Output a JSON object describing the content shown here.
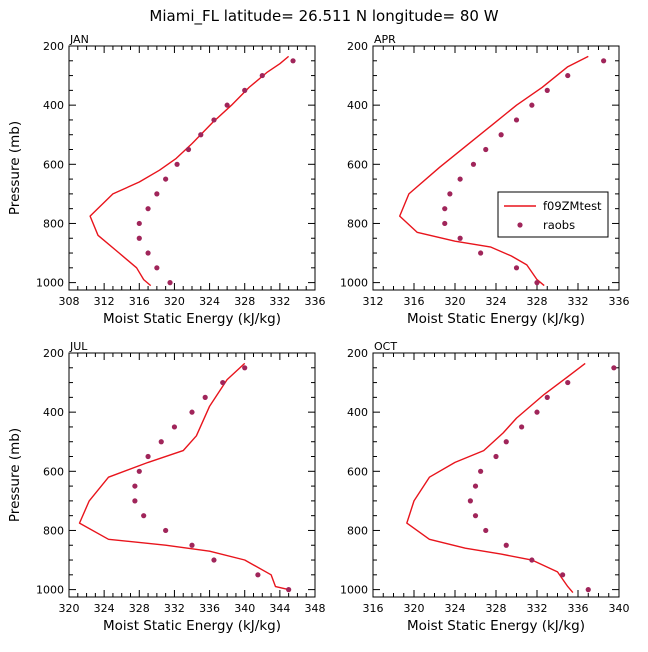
{
  "title": "Miami_FL  latitude= 26.511 N longitude= 80 W",
  "colors": {
    "model": "#e8141c",
    "obs": "#a0255a",
    "axis": "#000000"
  },
  "chart_data": [
    {
      "type": "scatter",
      "panel": "JAN",
      "xlabel": "Moist Static Energy (kJ/kg)",
      "ylabel": "Pressure (mb)",
      "xlim": [
        308,
        336
      ],
      "ylim": [
        200,
        1025
      ],
      "xticks": [
        308,
        312,
        316,
        320,
        324,
        328,
        332,
        336
      ],
      "yticks": [
        200,
        400,
        600,
        800,
        1000
      ],
      "legend": null,
      "series": [
        {
          "name": "f09ZMtest",
          "kind": "line",
          "points": [
            [
              333.0,
              235
            ],
            [
              332.0,
              260
            ],
            [
              330.5,
              290
            ],
            [
              328.5,
              340
            ],
            [
              326.5,
              400
            ],
            [
              324.3,
              460
            ],
            [
              322.0,
              530
            ],
            [
              320.2,
              580
            ],
            [
              318.3,
              620
            ],
            [
              316.0,
              660
            ],
            [
              313.0,
              700
            ],
            [
              310.4,
              775
            ],
            [
              311.3,
              840
            ],
            [
              313.7,
              900
            ],
            [
              315.7,
              950
            ],
            [
              316.5,
              990
            ],
            [
              317.3,
              1010
            ]
          ]
        },
        {
          "name": "raobs",
          "kind": "points",
          "points": [
            [
              333.5,
              250
            ],
            [
              330.0,
              300
            ],
            [
              328.0,
              350
            ],
            [
              326.0,
              400
            ],
            [
              324.5,
              450
            ],
            [
              323.0,
              500
            ],
            [
              321.6,
              550
            ],
            [
              320.3,
              600
            ],
            [
              319.0,
              650
            ],
            [
              318.0,
              700
            ],
            [
              317.0,
              750
            ],
            [
              316.0,
              800
            ],
            [
              316.0,
              850
            ],
            [
              317.0,
              900
            ],
            [
              318.0,
              950
            ],
            [
              319.5,
              1000
            ]
          ]
        }
      ]
    },
    {
      "type": "scatter",
      "panel": "APR",
      "xlabel": "Moist Static Energy (kJ/kg)",
      "ylabel": "",
      "xlim": [
        312,
        336
      ],
      "ylim": [
        200,
        1025
      ],
      "xticks": [
        312,
        316,
        320,
        324,
        328,
        332,
        336
      ],
      "yticks": [
        200,
        400,
        600,
        800,
        1000
      ],
      "legend": {
        "position": "right",
        "entries": [
          "f09ZMtest",
          "raobs"
        ]
      },
      "series": [
        {
          "name": "f09ZMtest",
          "kind": "line",
          "points": [
            [
              333.0,
              235
            ],
            [
              331.0,
              270
            ],
            [
              328.5,
              340
            ],
            [
              326.0,
              400
            ],
            [
              323.5,
              470
            ],
            [
              321.0,
              540
            ],
            [
              318.5,
              610
            ],
            [
              315.5,
              700
            ],
            [
              314.6,
              775
            ],
            [
              316.3,
              830
            ],
            [
              320.0,
              860
            ],
            [
              323.5,
              880
            ],
            [
              325.5,
              910
            ],
            [
              327.0,
              940
            ],
            [
              328.0,
              990
            ],
            [
              328.7,
              1010
            ]
          ]
        },
        {
          "name": "raobs",
          "kind": "points",
          "points": [
            [
              334.5,
              250
            ],
            [
              331.0,
              300
            ],
            [
              329.0,
              350
            ],
            [
              327.5,
              400
            ],
            [
              326.0,
              450
            ],
            [
              324.5,
              500
            ],
            [
              323.0,
              550
            ],
            [
              321.8,
              600
            ],
            [
              320.5,
              650
            ],
            [
              319.5,
              700
            ],
            [
              319.0,
              750
            ],
            [
              319.0,
              800
            ],
            [
              320.5,
              850
            ],
            [
              322.5,
              900
            ],
            [
              326.0,
              950
            ],
            [
              328.0,
              1000
            ]
          ]
        }
      ]
    },
    {
      "type": "scatter",
      "panel": "JUL",
      "xlabel": "Moist Static Energy (kJ/kg)",
      "ylabel": "Pressure (mb)",
      "xlim": [
        320,
        348
      ],
      "ylim": [
        200,
        1025
      ],
      "xticks": [
        320,
        324,
        328,
        332,
        336,
        340,
        344,
        348
      ],
      "yticks": [
        200,
        400,
        600,
        800,
        1000
      ],
      "legend": null,
      "series": [
        {
          "name": "f09ZMtest",
          "kind": "line",
          "points": [
            [
              340.0,
              235
            ],
            [
              338.0,
              290
            ],
            [
              336.0,
              380
            ],
            [
              334.5,
              480
            ],
            [
              333.0,
              530
            ],
            [
              329.0,
              570
            ],
            [
              324.5,
              620
            ],
            [
              322.3,
              700
            ],
            [
              321.2,
              775
            ],
            [
              324.5,
              830
            ],
            [
              331.0,
              850
            ],
            [
              336.0,
              870
            ],
            [
              340.0,
              900
            ],
            [
              343.0,
              950
            ],
            [
              343.5,
              990
            ],
            [
              345.0,
              1000
            ]
          ]
        },
        {
          "name": "raobs",
          "kind": "points",
          "points": [
            [
              340.0,
              250
            ],
            [
              337.5,
              300
            ],
            [
              335.5,
              350
            ],
            [
              334.0,
              400
            ],
            [
              332.0,
              450
            ],
            [
              330.5,
              500
            ],
            [
              329.0,
              550
            ],
            [
              328.0,
              600
            ],
            [
              327.5,
              650
            ],
            [
              327.5,
              700
            ],
            [
              328.5,
              750
            ],
            [
              331.0,
              800
            ],
            [
              334.0,
              850
            ],
            [
              336.5,
              900
            ],
            [
              341.5,
              950
            ],
            [
              345.0,
              1000
            ]
          ]
        }
      ]
    },
    {
      "type": "scatter",
      "panel": "OCT",
      "xlabel": "Moist Static Energy (kJ/kg)",
      "ylabel": "",
      "xlim": [
        316,
        340
      ],
      "ylim": [
        200,
        1025
      ],
      "xticks": [
        316,
        320,
        324,
        328,
        332,
        336,
        340
      ],
      "yticks": [
        200,
        400,
        600,
        800,
        1000
      ],
      "legend": null,
      "series": [
        {
          "name": "f09ZMtest",
          "kind": "line",
          "points": [
            [
              336.7,
              235
            ],
            [
              335.0,
              280
            ],
            [
              332.7,
              340
            ],
            [
              330.0,
              420
            ],
            [
              328.7,
              470
            ],
            [
              326.8,
              530
            ],
            [
              324.0,
              570
            ],
            [
              321.5,
              620
            ],
            [
              320.0,
              700
            ],
            [
              319.3,
              775
            ],
            [
              321.5,
              830
            ],
            [
              325.0,
              860
            ],
            [
              328.5,
              880
            ],
            [
              331.5,
              900
            ],
            [
              334.0,
              940
            ],
            [
              335.0,
              990
            ],
            [
              335.5,
              1010
            ]
          ]
        },
        {
          "name": "raobs",
          "kind": "points",
          "points": [
            [
              339.5,
              250
            ],
            [
              335.0,
              300
            ],
            [
              333.0,
              350
            ],
            [
              332.0,
              400
            ],
            [
              330.5,
              450
            ],
            [
              329.0,
              500
            ],
            [
              328.0,
              550
            ],
            [
              326.5,
              600
            ],
            [
              326.0,
              650
            ],
            [
              325.5,
              700
            ],
            [
              326.0,
              750
            ],
            [
              327.0,
              800
            ],
            [
              329.0,
              850
            ],
            [
              331.5,
              900
            ],
            [
              334.5,
              950
            ],
            [
              337.0,
              1000
            ]
          ]
        }
      ]
    }
  ]
}
